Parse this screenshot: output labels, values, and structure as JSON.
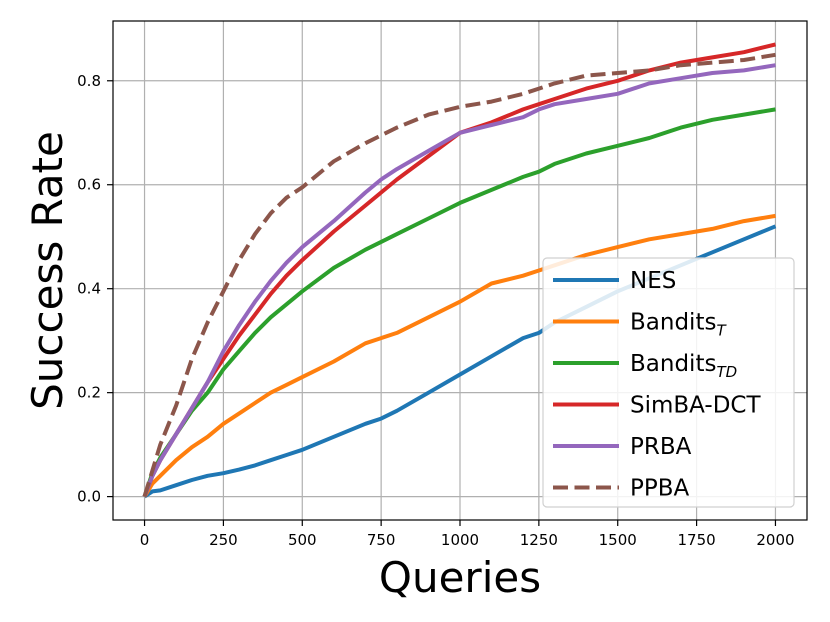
{
  "chart_data": {
    "type": "line",
    "title": "",
    "xlabel": "Queries",
    "ylabel": "Success Rate",
    "xlim": [
      -100,
      2100
    ],
    "ylim": [
      -0.045,
      0.915
    ],
    "xticks": [
      0,
      250,
      500,
      750,
      1000,
      1250,
      1500,
      1750,
      2000
    ],
    "xtick_labels": [
      "0",
      "250",
      "500",
      "750",
      "1000",
      "1250",
      "1500",
      "1750",
      "2000"
    ],
    "yticks": [
      0.0,
      0.2,
      0.4,
      0.6,
      0.8
    ],
    "ytick_labels": [
      "0.0",
      "0.2",
      "0.4",
      "0.6",
      "0.8"
    ],
    "grid": true,
    "legend_position": "lower-right",
    "x": [
      0,
      25,
      50,
      100,
      150,
      200,
      250,
      300,
      350,
      400,
      450,
      500,
      600,
      700,
      750,
      800,
      900,
      1000,
      1100,
      1200,
      1250,
      1300,
      1400,
      1500,
      1600,
      1700,
      1800,
      1900,
      2000
    ],
    "series": [
      {
        "name": "NES",
        "label_main": "NES",
        "label_sub": "",
        "color": "#1f77b4",
        "dash": "solid",
        "values": [
          0.0,
          0.01,
          0.012,
          0.022,
          0.032,
          0.04,
          0.045,
          0.052,
          0.06,
          0.07,
          0.08,
          0.09,
          0.115,
          0.14,
          0.15,
          0.165,
          0.2,
          0.235,
          0.27,
          0.305,
          0.315,
          0.335,
          0.365,
          0.395,
          0.42,
          0.445,
          0.47,
          0.495,
          0.52
        ]
      },
      {
        "name": "Bandits_T",
        "label_main": "Bandits",
        "label_sub": "T",
        "color": "#ff7f0e",
        "dash": "solid",
        "values": [
          0.0,
          0.025,
          0.04,
          0.07,
          0.095,
          0.115,
          0.14,
          0.16,
          0.18,
          0.2,
          0.215,
          0.23,
          0.26,
          0.295,
          0.305,
          0.315,
          0.345,
          0.375,
          0.41,
          0.425,
          0.435,
          0.445,
          0.465,
          0.48,
          0.495,
          0.505,
          0.515,
          0.53,
          0.54
        ]
      },
      {
        "name": "Bandits_TD",
        "label_main": "Bandits",
        "label_sub": "TD",
        "color": "#2ca02c",
        "dash": "solid",
        "values": [
          0.0,
          0.045,
          0.075,
          0.12,
          0.165,
          0.2,
          0.245,
          0.28,
          0.315,
          0.345,
          0.37,
          0.395,
          0.44,
          0.475,
          0.49,
          0.505,
          0.535,
          0.565,
          0.59,
          0.615,
          0.625,
          0.64,
          0.66,
          0.675,
          0.69,
          0.71,
          0.725,
          0.735,
          0.745
        ]
      },
      {
        "name": "SimBA-DCT",
        "label_main": "SimBA-DCT",
        "label_sub": "",
        "color": "#d62728",
        "dash": "solid",
        "values": [
          0.0,
          0.04,
          0.07,
          0.12,
          0.17,
          0.22,
          0.265,
          0.31,
          0.35,
          0.39,
          0.425,
          0.455,
          0.51,
          0.56,
          0.585,
          0.61,
          0.655,
          0.7,
          0.72,
          0.745,
          0.755,
          0.765,
          0.785,
          0.8,
          0.82,
          0.835,
          0.845,
          0.855,
          0.87
        ]
      },
      {
        "name": "PRBA",
        "label_main": "PRBA",
        "label_sub": "",
        "color": "#9467bd",
        "dash": "solid",
        "values": [
          0.0,
          0.04,
          0.07,
          0.12,
          0.17,
          0.22,
          0.28,
          0.33,
          0.375,
          0.415,
          0.45,
          0.48,
          0.53,
          0.585,
          0.61,
          0.63,
          0.665,
          0.7,
          0.715,
          0.73,
          0.745,
          0.755,
          0.765,
          0.775,
          0.795,
          0.805,
          0.815,
          0.82,
          0.83
        ]
      },
      {
        "name": "PPBA",
        "label_main": "PPBA",
        "label_sub": "",
        "color": "#8c564b",
        "dash": "dashed",
        "values": [
          0.0,
          0.05,
          0.1,
          0.175,
          0.265,
          0.335,
          0.395,
          0.455,
          0.505,
          0.545,
          0.575,
          0.595,
          0.645,
          0.68,
          0.695,
          0.71,
          0.735,
          0.75,
          0.76,
          0.775,
          0.785,
          0.795,
          0.81,
          0.815,
          0.82,
          0.83,
          0.835,
          0.84,
          0.85
        ]
      }
    ]
  }
}
